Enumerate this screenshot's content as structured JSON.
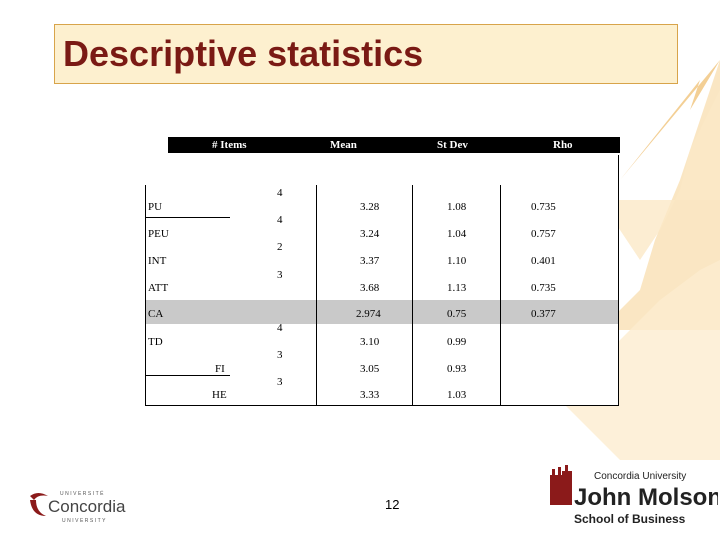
{
  "slide": {
    "title": "Descriptive statistics",
    "page_number": "12"
  },
  "table": {
    "headers": {
      "items": "# Items",
      "mean": "Mean",
      "stdev": "St Dev",
      "rho": "Rho"
    },
    "rows": [
      {
        "label": "PU",
        "items": "4",
        "mean": "3.28",
        "stdev": "1.08",
        "rho": "0.735"
      },
      {
        "label": "PEU",
        "items": "4",
        "mean": "3.24",
        "stdev": "1.04",
        "rho": "0.757"
      },
      {
        "label": "INT",
        "items": "2",
        "mean": "3.37",
        "stdev": "1.10",
        "rho": "0.401"
      },
      {
        "label": "ATT",
        "items": "3",
        "mean": "3.68",
        "stdev": "1.13",
        "rho": "0.735"
      },
      {
        "label": "CA",
        "items": "",
        "mean": "2.974",
        "stdev": "0.75",
        "rho": "0.377"
      },
      {
        "label": "TD",
        "items": "4",
        "mean": "3.10",
        "stdev": "0.99",
        "rho": ""
      },
      {
        "label": "FI",
        "items": "3",
        "mean": "3.05",
        "stdev": "0.93",
        "rho": ""
      },
      {
        "label": "HE",
        "items": "3",
        "mean": "3.33",
        "stdev": "1.03",
        "rho": ""
      }
    ]
  },
  "logos": {
    "concordia": {
      "top": "UNIVERSITÉ",
      "name": "Concordia",
      "bottom": "UNIVERSITY"
    },
    "jmsb": {
      "line1": "Concordia University",
      "line2": "John Molson",
      "line3": "School of Business"
    }
  },
  "colors": {
    "title": "#7a1a14",
    "title_bg": "#fdf0cf",
    "title_border": "#d8a44a",
    "arrow": "#f7d9a8",
    "ca_band": "#c9c9c9",
    "jmsb_red": "#8b1a1a"
  }
}
